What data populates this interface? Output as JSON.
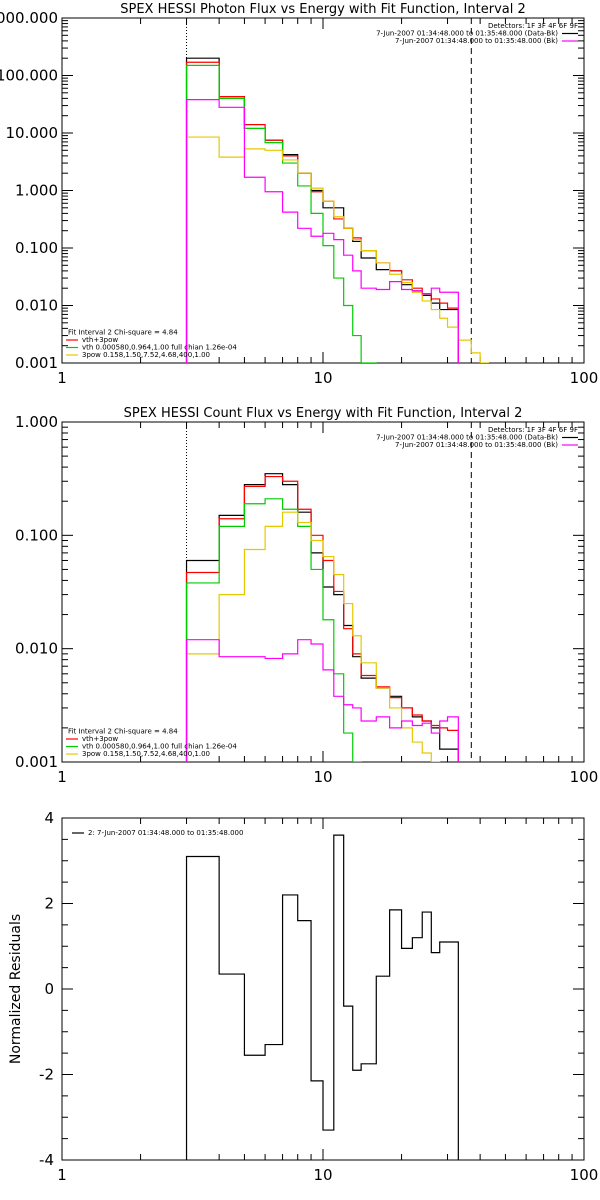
{
  "colors": {
    "total": "#000000",
    "fit_sum": "#ff0000",
    "vth": "#00cc00",
    "3pow": "#e6c800",
    "background": "#ff00ff",
    "legend_bk": "#ff00ff"
  },
  "chart_data": [
    {
      "type": "line",
      "title": "SPEX HESSI Photon Flux vs Energy with Fit Function, Interval 2",
      "xscale": "log",
      "yscale": "log",
      "xlim": [
        1,
        100
      ],
      "ylim": [
        0.001,
        1000
      ],
      "x_ticks": [
        "1",
        "10",
        "100"
      ],
      "y_ticks": [
        "0.001",
        "0.010",
        "0.100",
        "1.000",
        "10.000",
        "100.000",
        "1000.000"
      ],
      "vlines": [
        3,
        37
      ],
      "legend_top": [
        {
          "text": "Detectors: 1F 3F 4F 6F 9F",
          "color": ""
        },
        {
          "text": "7-Jun-2007 01:34:48.000 to 01:35:48.000 (Data-Bk)",
          "color": "total"
        },
        {
          "text": "7-Jun-2007 01:34:48.000 to 01:35:48.000 (Bk)",
          "color": "background"
        }
      ],
      "legend_bottom": [
        {
          "text": "Fit Interval 2   Chi-square = 4.84",
          "color": ""
        },
        {
          "text": "vth+3pow",
          "color": "fit_sum"
        },
        {
          "text": "vth 0.000580,0.964,1.00  full chian 1.26e-04",
          "color": "vth"
        },
        {
          "text": "3pow 0.158,1.50,7.52,4.68,400,1.00",
          "color": "3pow"
        }
      ],
      "bin_edges": [
        3,
        4,
        5,
        6,
        7,
        8,
        9,
        10,
        11,
        12,
        13,
        14,
        16,
        18,
        20,
        22,
        24,
        26,
        28,
        30,
        33,
        37,
        40,
        43
      ],
      "series": [
        {
          "key": "total",
          "values": [
            200,
            40,
            12,
            7.5,
            4.2,
            2.0,
            1.0,
            0.5,
            0.5,
            0.22,
            0.13,
            0.067,
            0.042,
            0.04,
            0.023,
            0.018,
            0.015,
            0.011,
            0.0085,
            0.0085
          ]
        },
        {
          "key": "fit_sum",
          "values": [
            170,
            43,
            14,
            7.5,
            4.0,
            2.0,
            0.95,
            0.65,
            0.32,
            0.22,
            0.15,
            0.09,
            0.055,
            0.04,
            0.028,
            0.02,
            0.016,
            0.013,
            0.011,
            0.009
          ]
        },
        {
          "key": "vth",
          "values": [
            150,
            40,
            12,
            6.8,
            3.0,
            1.2,
            0.4,
            0.11,
            0.03,
            0.01,
            0.003,
            0.001
          ]
        },
        {
          "key": "3pow",
          "values": [
            8.5,
            3.8,
            5.3,
            5.0,
            3.4,
            2.0,
            1.1,
            0.65,
            0.35,
            0.22,
            0.14,
            0.09,
            0.055,
            0.035,
            0.025,
            0.017,
            0.012,
            0.0085,
            0.006,
            0.0042,
            0.0025,
            0.0015,
            0.001
          ]
        },
        {
          "key": "background",
          "values": [
            38,
            28,
            1.7,
            0.95,
            0.42,
            0.22,
            0.16,
            0.18,
            0.14,
            0.075,
            0.04,
            0.02,
            0.019,
            0.026,
            0.019,
            0.018,
            0.016,
            0.02,
            0.017,
            0.017
          ]
        }
      ]
    },
    {
      "type": "line",
      "title": "SPEX HESSI Count Flux vs Energy with Fit Function, Interval 2",
      "xscale": "log",
      "yscale": "log",
      "xlim": [
        1,
        100
      ],
      "ylim": [
        0.001,
        1
      ],
      "x_ticks": [
        "1",
        "10",
        "100"
      ],
      "y_ticks": [
        "0.001",
        "0.010",
        "0.100",
        "1.000"
      ],
      "vlines": [
        3,
        37
      ],
      "legend_top": [
        {
          "text": "Detectors: 1F 3F 4F 6F 9F",
          "color": ""
        },
        {
          "text": "7-Jun-2007 01:34:48.000 to 01:35:48.000 (Data-Bk)",
          "color": "total"
        },
        {
          "text": "7-Jun-2007 01:34:48.000 to 01:35:48.000 (Bk)",
          "color": "background"
        }
      ],
      "legend_bottom": [
        {
          "text": "Fit Interval 2   Chi-square = 4.84",
          "color": ""
        },
        {
          "text": "vth+3pow",
          "color": "fit_sum"
        },
        {
          "text": "vth 0.000580,0.964,1.00  full chian 1.26e-04",
          "color": "vth"
        },
        {
          "text": "3pow 0.158,1.50,7.52,4.68,400,1.00",
          "color": "3pow"
        }
      ],
      "bin_edges": [
        3,
        4,
        5,
        6,
        7,
        8,
        9,
        10,
        11,
        12,
        13,
        14,
        16,
        18,
        20,
        22,
        24,
        26,
        28,
        30,
        33,
        37
      ],
      "series": [
        {
          "key": "total",
          "values": [
            0.06,
            0.15,
            0.28,
            0.35,
            0.28,
            0.16,
            0.07,
            0.035,
            0.03,
            0.016,
            0.0085,
            0.0055,
            0.0045,
            0.0038,
            0.003,
            0.0025,
            0.0023,
            0.002,
            0.0013,
            0.0013
          ]
        },
        {
          "key": "fit_sum",
          "values": [
            0.047,
            0.14,
            0.27,
            0.33,
            0.3,
            0.17,
            0.1,
            0.06,
            0.032,
            0.015,
            0.009,
            0.0058,
            0.0046,
            0.0037,
            0.003,
            0.0026,
            0.0023,
            0.0021,
            0.002,
            0.0019
          ]
        },
        {
          "key": "vth",
          "values": [
            0.038,
            0.12,
            0.19,
            0.21,
            0.17,
            0.12,
            0.05,
            0.018,
            0.006,
            0.0018,
            0.001
          ]
        },
        {
          "key": "3pow",
          "values": [
            0.009,
            0.03,
            0.075,
            0.12,
            0.16,
            0.13,
            0.09,
            0.065,
            0.045,
            0.025,
            0.013,
            0.0075,
            0.0045,
            0.003,
            0.002,
            0.0015,
            0.0012,
            0.001
          ]
        },
        {
          "key": "background",
          "values": [
            0.012,
            0.0085,
            0.0085,
            0.0082,
            0.009,
            0.012,
            0.011,
            0.0065,
            0.0038,
            0.0032,
            0.003,
            0.0023,
            0.0025,
            0.002,
            0.0023,
            0.0021,
            0.0022,
            0.0018,
            0.0023,
            0.0025
          ]
        }
      ]
    },
    {
      "type": "line",
      "xscale": "log",
      "xlim": [
        1,
        100
      ],
      "ylim": [
        -4,
        4
      ],
      "ylabel": "Normalized Residuals",
      "x_ticks": [
        "1",
        "10",
        "100"
      ],
      "y_ticks": [
        "-4",
        "-2",
        "0",
        "2",
        "4"
      ],
      "legend_top": [
        {
          "text": "2:  7-Jun-2007 01:34:48.000 to 01:35:48.000",
          "color": "total"
        }
      ],
      "bin_edges": [
        3,
        4,
        5,
        6,
        7,
        8,
        9,
        10,
        11,
        12,
        13,
        14,
        16,
        18,
        20,
        22,
        24,
        26,
        28,
        30,
        33,
        37
      ],
      "series": [
        {
          "key": "total",
          "values": [
            3.1,
            0.35,
            -1.55,
            -1.3,
            2.2,
            1.6,
            -2.15,
            -3.3,
            3.6,
            -0.4,
            -1.9,
            -1.75,
            0.3,
            1.85,
            0.95,
            1.2,
            1.8,
            0.85,
            1.1,
            1.1
          ]
        }
      ]
    }
  ]
}
